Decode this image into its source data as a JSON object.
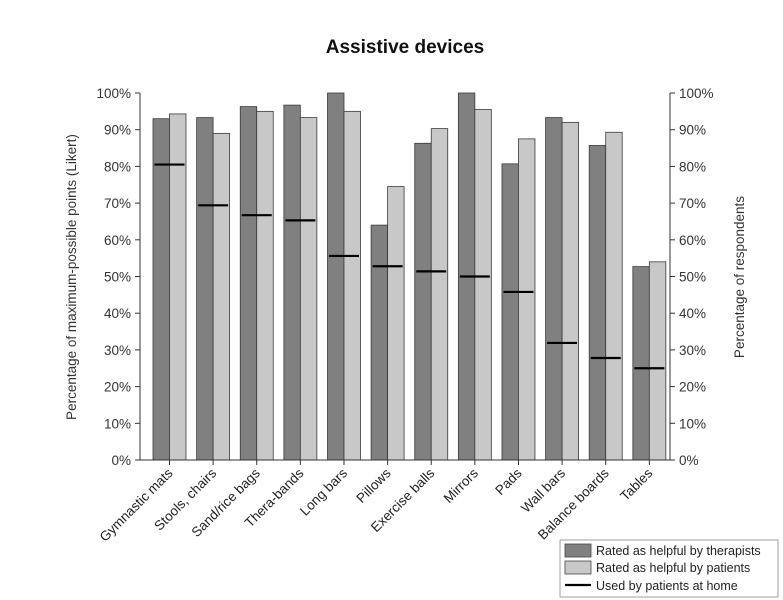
{
  "chart_data": {
    "type": "bar",
    "title": "Assistive devices",
    "ylabel_left": "Percentage of maximum-possible points (Likert)",
    "ylabel_right": "Percentage of respondents",
    "ylim": [
      0,
      100
    ],
    "yticks": [
      "0%",
      "10%",
      "20%",
      "30%",
      "40%",
      "50%",
      "60%",
      "70%",
      "80%",
      "90%",
      "100%"
    ],
    "categories": [
      "Gymnastic mats",
      "Stools, chairs",
      "Sand/rice bags",
      "Thera-bands",
      "Long bars",
      "Pillows",
      "Exercise balls",
      "Mirrors",
      "Pads",
      "Wall bars",
      "Balance boards",
      "Tables"
    ],
    "series": [
      {
        "name": "Rated as helpful by therapists",
        "kind": "bar",
        "color": "#808080",
        "values": [
          93,
          93.3,
          96.3,
          96.7,
          100,
          64,
          86.3,
          100,
          80.7,
          93.3,
          85.7,
          52.7
        ]
      },
      {
        "name": "Rated as helpful by patients",
        "kind": "bar",
        "color": "#c8c8c8",
        "values": [
          94.3,
          89,
          95,
          93.3,
          95,
          74.5,
          90.3,
          95.5,
          87.5,
          92,
          89.3,
          54
        ]
      },
      {
        "name": "Used by patients at home",
        "kind": "marker",
        "color": "#000000",
        "values": [
          80.5,
          69.4,
          66.7,
          65.3,
          55.6,
          52.8,
          51.4,
          50,
          45.8,
          31.9,
          27.8,
          25
        ]
      }
    ],
    "grid": false,
    "legend_position": "bottom-right"
  }
}
